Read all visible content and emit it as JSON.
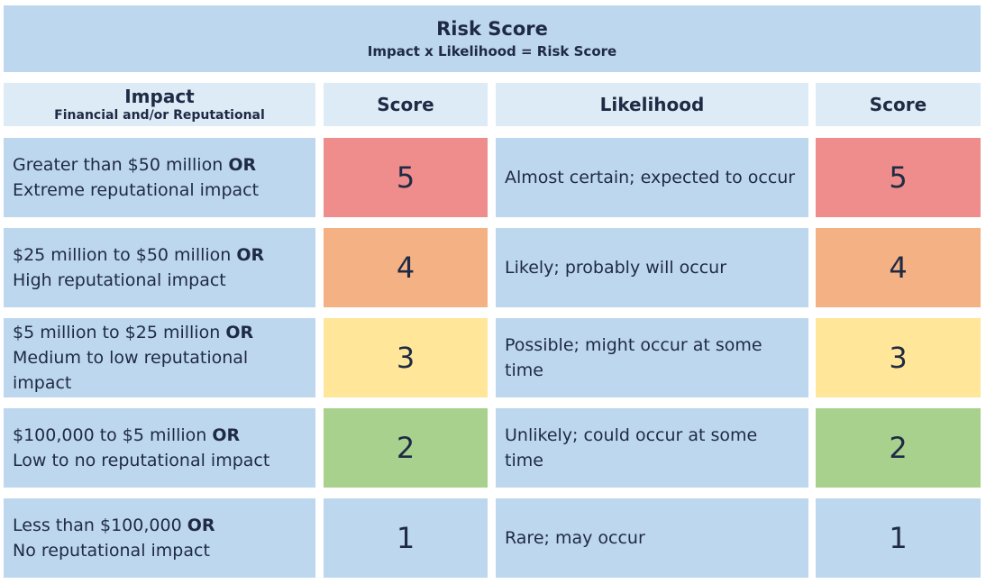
{
  "title": {
    "main": "Risk Score",
    "subtitle": "Impact x Likelihood = Risk Score"
  },
  "headers": {
    "impact": "Impact",
    "impact_sub": "Financial and/or Reputational",
    "score_left": "Score",
    "likelihood": "Likelihood",
    "score_right": "Score"
  },
  "connector": "OR",
  "rows": [
    {
      "impact_line1": "Greater than $50 million",
      "impact_line2": "Extreme reputational impact",
      "impact_score": "5",
      "likelihood": "Almost certain; expected to occur",
      "likelihood_score": "5",
      "color": "#ee8d8c"
    },
    {
      "impact_line1": "$25 million to $50 million",
      "impact_line2": "High reputational impact",
      "impact_score": "4",
      "likelihood": "Likely; probably will occur",
      "likelihood_score": "4",
      "color": "#f4b183"
    },
    {
      "impact_line1": "$5 million to $25 million",
      "impact_line2": "Medium to low reputational impact",
      "impact_score": "3",
      "likelihood": "Possible; might occur at some time",
      "likelihood_score": "3",
      "color": "#ffe699"
    },
    {
      "impact_line1": "$100,000 to $5 million",
      "impact_line2": "Low to no reputational impact",
      "impact_score": "2",
      "likelihood": "Unlikely; could occur at some time",
      "likelihood_score": "2",
      "color": "#a9d18e"
    },
    {
      "impact_line1": "Less than $100,000",
      "impact_line2": "No reputational impact",
      "impact_score": "1",
      "likelihood": "Rare; may occur",
      "likelihood_score": "1",
      "color": "#bdd7ee"
    }
  ]
}
